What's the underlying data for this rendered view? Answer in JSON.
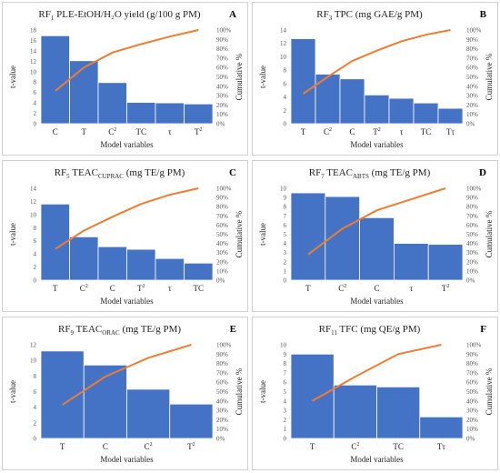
{
  "colors": {
    "bar": "#4472c4",
    "cumulative_line": "#ed7d31"
  },
  "chart_data": [
    {
      "panel": "A",
      "type": "bar",
      "title_main": "RF",
      "title_sub": "1",
      "title_rest": " PLE-EtOH/H₂O yield (g/100 g PM)",
      "xlabel": "Model variables",
      "ylabel": "t-value",
      "y2label": "Cumulative %",
      "ylim": [
        0,
        18
      ],
      "yticks": [
        0,
        2,
        4,
        6,
        8,
        10,
        12,
        14,
        16,
        18
      ],
      "categories": [
        [
          "C",
          ""
        ],
        [
          "T",
          ""
        ],
        [
          "C",
          "2"
        ],
        [
          "TC",
          ""
        ],
        [
          "τ",
          ""
        ],
        [
          "T",
          "2"
        ]
      ],
      "values": [
        16.9,
        12.1,
        7.9,
        4.1,
        4.0,
        3.8
      ],
      "cumulative_pct": [
        35,
        60,
        76,
        85,
        93,
        100
      ]
    },
    {
      "panel": "B",
      "type": "bar",
      "title_main": "RF",
      "title_sub": "3",
      "title_rest": " TPC (mg GAE/g PM)",
      "xlabel": "Model variables",
      "ylabel": "t-value",
      "y2label": "Cumulative %",
      "ylim": [
        0,
        14
      ],
      "yticks": [
        0,
        2,
        4,
        6,
        8,
        10,
        12,
        14
      ],
      "categories": [
        [
          "T",
          ""
        ],
        [
          "C",
          "2"
        ],
        [
          "C",
          ""
        ],
        [
          "T",
          "2"
        ],
        [
          "τ",
          ""
        ],
        [
          "TC",
          ""
        ],
        [
          "Tτ",
          ""
        ]
      ],
      "values": [
        12.7,
        7.4,
        6.7,
        4.3,
        3.8,
        3.1,
        2.3
      ],
      "cumulative_pct": [
        32,
        50,
        67,
        78,
        88,
        95,
        100
      ]
    },
    {
      "panel": "C",
      "type": "bar",
      "title_main": "RF",
      "title_sub": "5",
      "title_rest": " TEAC",
      "title_sub2": "CUPRAC",
      "title_rest2": " (mg TE/g PM)",
      "xlabel": "Model variables",
      "ylabel": "t-value",
      "y2label": "Cumulative %",
      "ylim": [
        0,
        14
      ],
      "yticks": [
        0,
        2,
        4,
        6,
        8,
        10,
        12,
        14
      ],
      "categories": [
        [
          "T",
          ""
        ],
        [
          "C",
          "2"
        ],
        [
          "C",
          ""
        ],
        [
          "T",
          "2"
        ],
        [
          "τ",
          ""
        ],
        [
          "TC",
          ""
        ]
      ],
      "values": [
        11.6,
        6.6,
        5.1,
        4.7,
        3.3,
        2.6
      ],
      "cumulative_pct": [
        34,
        54,
        69,
        83,
        93,
        100
      ]
    },
    {
      "panel": "D",
      "type": "bar",
      "title_main": "RF",
      "title_sub": "7",
      "title_rest": " TEAC",
      "title_sub2": "ABTS",
      "title_rest2": " (mg TE/g PM)",
      "xlabel": "Model variables",
      "ylabel": "t-value",
      "y2label": "Cumulative %",
      "ylim": [
        0,
        10
      ],
      "yticks": [
        0,
        1,
        2,
        3,
        4,
        5,
        6,
        7,
        8,
        9,
        10
      ],
      "categories": [
        [
          "T",
          ""
        ],
        [
          "C",
          "2"
        ],
        [
          "C",
          ""
        ],
        [
          "τ",
          ""
        ],
        [
          "T",
          "2"
        ]
      ],
      "values": [
        9.5,
        9.1,
        6.8,
        4.0,
        3.9
      ],
      "cumulative_pct": [
        28,
        56,
        76,
        88,
        100
      ]
    },
    {
      "panel": "E",
      "type": "bar",
      "title_main": "RF",
      "title_sub": "9",
      "title_rest": " TEAC",
      "title_sub2": "ORAC",
      "title_rest2": " (mg TE/g PM)",
      "xlabel": "Model variables",
      "ylabel": "t-value",
      "y2label": "Cumulative %",
      "ylim": [
        0,
        12
      ],
      "yticks": [
        0,
        2,
        4,
        6,
        8,
        10,
        12
      ],
      "categories": [
        [
          "T",
          ""
        ],
        [
          "C",
          ""
        ],
        [
          "C",
          "2"
        ],
        [
          "T",
          "2"
        ]
      ],
      "values": [
        11.2,
        9.4,
        6.3,
        4.4
      ],
      "cumulative_pct": [
        36,
        66,
        86,
        100
      ]
    },
    {
      "panel": "F",
      "type": "bar",
      "title_main": "RF",
      "title_sub": "11",
      "title_rest": " TFC (mg QE/g PM)",
      "xlabel": "Model variables",
      "ylabel": "t-value",
      "y2label": "Cumulative %",
      "ylim": [
        0,
        10
      ],
      "yticks": [
        0,
        1,
        2,
        3,
        4,
        5,
        6,
        7,
        8,
        9,
        10
      ],
      "categories": [
        [
          "T",
          ""
        ],
        [
          "C",
          "2"
        ],
        [
          "TC",
          ""
        ],
        [
          "Tτ",
          ""
        ]
      ],
      "values": [
        9.0,
        5.7,
        5.5,
        2.3
      ],
      "cumulative_pct": [
        40,
        66,
        90,
        100
      ]
    }
  ]
}
